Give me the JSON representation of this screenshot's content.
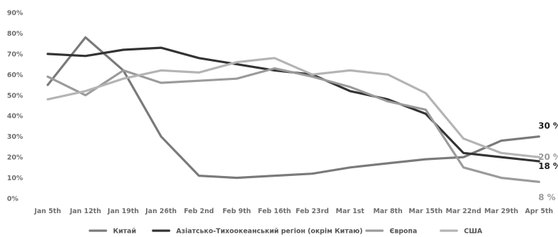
{
  "chart_data": {
    "type": "line",
    "title": "",
    "xlabel": "",
    "ylabel": "",
    "ylim": [
      0,
      90
    ],
    "y_ticks": [
      "0%",
      "10%",
      "20%",
      "30%",
      "40%",
      "50%",
      "60%",
      "70%",
      "80%",
      "90%"
    ],
    "grid": false,
    "legend_position": "bottom",
    "categories": [
      "Jan 5th",
      "Jan 12th",
      "Jan 19th",
      "Jan 26th",
      "Feb 2nd",
      "Feb 9th",
      "Feb 16th",
      "Feb 23rd",
      "Mar 1st",
      "Mar 8th",
      "Mar 15th",
      "Mar 22nd",
      "Mar 29th",
      "Apr 5th"
    ],
    "series": [
      {
        "name": "Китай",
        "color": "#7a7a7a",
        "values": [
          55,
          78,
          62,
          30,
          11,
          10,
          11,
          12,
          15,
          17,
          19,
          20,
          28,
          30
        ],
        "end_label": "30 %",
        "end_label_color": "#1e1e1e"
      },
      {
        "name": "Азіатсько-Тихоокеанський регіон (окрім Китаю)",
        "color": "#333333",
        "values": [
          70,
          69,
          72,
          73,
          68,
          65,
          62,
          60,
          52,
          48,
          41,
          22,
          20,
          18
        ],
        "end_label": "18 %",
        "end_label_color": "#1e1e1e"
      },
      {
        "name": "Європа",
        "color": "#9b9b9b",
        "values": [
          59,
          50,
          62,
          56,
          57,
          58,
          63,
          59,
          54,
          47,
          43,
          15,
          10,
          8
        ],
        "end_label": "8 %",
        "end_label_color": "#9a9a9a"
      },
      {
        "name": "США",
        "color": "#b4b4b4",
        "values": [
          48,
          52,
          58,
          62,
          61,
          66,
          68,
          60,
          62,
          60,
          51,
          29,
          22,
          20
        ],
        "end_label": "20 %",
        "end_label_color": "#9a9a9a"
      }
    ]
  }
}
